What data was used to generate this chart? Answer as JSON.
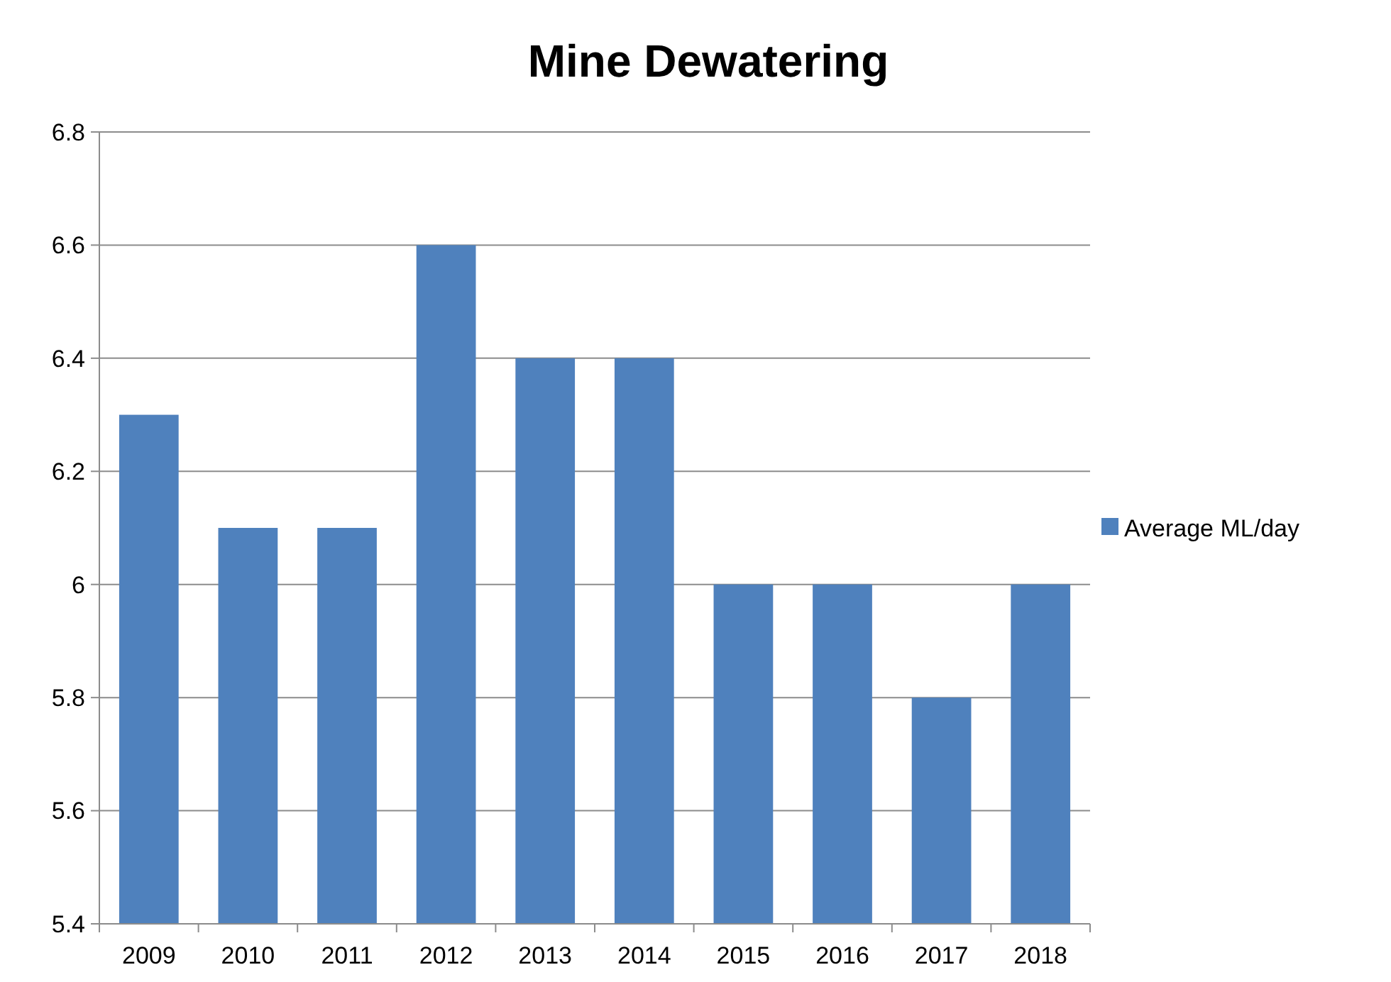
{
  "chart_data": {
    "type": "bar",
    "title": "Mine Dewatering",
    "categories": [
      "2009",
      "2010",
      "2011",
      "2012",
      "2013",
      "2014",
      "2015",
      "2016",
      "2017",
      "2018"
    ],
    "series": [
      {
        "name": "Average ML/day",
        "color": "#4f81bd",
        "values": [
          6.3,
          6.1,
          6.1,
          6.6,
          6.4,
          6.4,
          6.0,
          6.0,
          5.8,
          6.0
        ]
      }
    ],
    "ylim": [
      5.4,
      6.8
    ],
    "yticks": [
      5.4,
      5.6,
      5.8,
      6,
      6.2,
      6.4,
      6.6,
      6.8
    ],
    "grid": "y",
    "legend": "right"
  }
}
